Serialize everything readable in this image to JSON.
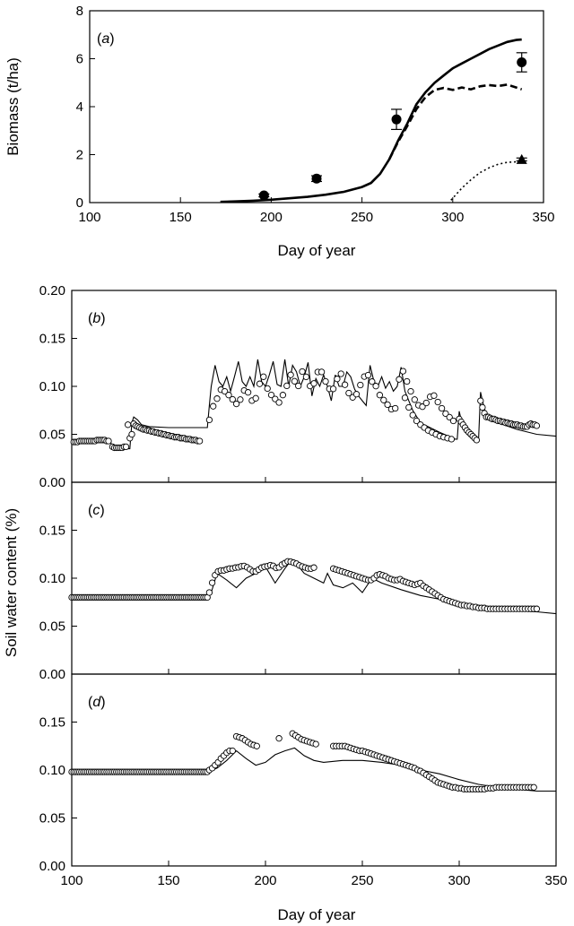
{
  "chart_data": [
    {
      "type": "line",
      "panel_label": "(a)",
      "panel_letter": "a",
      "xlabel": "Day of year",
      "ylabel": "Biomass (t/ha)",
      "xlim": [
        100,
        350
      ],
      "ylim": [
        0,
        8
      ],
      "xticks": [
        100,
        150,
        200,
        250,
        300,
        350
      ],
      "yticks": [
        0,
        2,
        4,
        6,
        8
      ],
      "series": [
        {
          "style": "solid-thick",
          "x": [
            172,
            180,
            190,
            200,
            210,
            220,
            230,
            240,
            250,
            255,
            260,
            265,
            270,
            275,
            280,
            285,
            290,
            295,
            300,
            305,
            310,
            315,
            320,
            325,
            330,
            335,
            338
          ],
          "y": [
            0.03,
            0.05,
            0.08,
            0.12,
            0.18,
            0.24,
            0.33,
            0.45,
            0.65,
            0.82,
            1.2,
            1.8,
            2.6,
            3.3,
            4.1,
            4.6,
            5.0,
            5.3,
            5.6,
            5.8,
            6.0,
            6.2,
            6.4,
            6.55,
            6.7,
            6.78,
            6.8
          ]
        },
        {
          "style": "dashed-thick",
          "x": [
            265,
            270,
            275,
            280,
            285,
            290,
            295,
            300,
            305,
            310,
            315,
            320,
            325,
            330,
            335,
            338
          ],
          "y": [
            1.8,
            2.55,
            3.2,
            3.9,
            4.4,
            4.7,
            4.78,
            4.7,
            4.8,
            4.72,
            4.85,
            4.9,
            4.86,
            4.92,
            4.8,
            4.72
          ]
        },
        {
          "style": "dotted",
          "x": [
            299,
            305,
            310,
            315,
            320,
            325,
            330,
            335,
            338
          ],
          "y": [
            0.1,
            0.6,
            0.95,
            1.25,
            1.45,
            1.6,
            1.68,
            1.7,
            1.72
          ]
        }
      ],
      "observations": [
        {
          "marker": "circle",
          "x": 196,
          "y": 0.3,
          "err": 0.06
        },
        {
          "marker": "circle",
          "x": 225,
          "y": 1.0,
          "err": 0.12
        },
        {
          "marker": "circle",
          "x": 269,
          "y": 3.47,
          "err": 0.42
        },
        {
          "marker": "circle",
          "x": 338,
          "y": 5.85,
          "err": 0.4
        },
        {
          "marker": "triangle",
          "x": 338,
          "y": 1.8,
          "err": 0.06
        }
      ]
    },
    {
      "type": "line",
      "panel_label": "(b)",
      "panel_letter": "b",
      "xlim": [
        100,
        350
      ],
      "ylim": [
        0,
        0.2
      ],
      "xticks": [
        100,
        150,
        200,
        250,
        300,
        350
      ],
      "yticks": [
        "0.00",
        "0.05",
        "0.10",
        "0.15",
        "0.20"
      ],
      "simulated": {
        "x": [
          100,
          110,
          120,
          121,
          122,
          128,
          130,
          131,
          132,
          134,
          136,
          140,
          150,
          160,
          168,
          170,
          171,
          172,
          174,
          176,
          178,
          180,
          182,
          184,
          186,
          188,
          190,
          192,
          194,
          196,
          198,
          200,
          202,
          204,
          206,
          208,
          210,
          212,
          214,
          216,
          218,
          220,
          222,
          224,
          226,
          228,
          230,
          232,
          234,
          236,
          238,
          240,
          242,
          244,
          246,
          248,
          250,
          252,
          254,
          256,
          258,
          260,
          262,
          264,
          266,
          268,
          270,
          272,
          274,
          276,
          280,
          290,
          298,
          299,
          300,
          301,
          302,
          304,
          306,
          308,
          309,
          310,
          311,
          312,
          314,
          320,
          330,
          340,
          350
        ],
        "y": [
          0.043,
          0.043,
          0.043,
          0.035,
          0.035,
          0.035,
          0.035,
          0.062,
          0.068,
          0.065,
          0.06,
          0.058,
          0.057,
          0.057,
          0.057,
          0.057,
          0.08,
          0.1,
          0.122,
          0.105,
          0.1,
          0.11,
          0.095,
          0.11,
          0.126,
          0.105,
          0.1,
          0.11,
          0.1,
          0.128,
          0.105,
          0.1,
          0.112,
          0.126,
          0.102,
          0.1,
          0.128,
          0.1,
          0.122,
          0.115,
          0.1,
          0.11,
          0.125,
          0.09,
          0.108,
          0.1,
          0.112,
          0.1,
          0.085,
          0.112,
          0.1,
          0.1,
          0.115,
          0.11,
          0.097,
          0.09,
          0.085,
          0.08,
          0.122,
          0.105,
          0.1,
          0.11,
          0.098,
          0.105,
          0.095,
          0.1,
          0.12,
          0.095,
          0.085,
          0.075,
          0.062,
          0.052,
          0.045,
          0.045,
          0.074,
          0.065,
          0.06,
          0.055,
          0.05,
          0.047,
          0.045,
          0.045,
          0.094,
          0.085,
          0.07,
          0.062,
          0.055,
          0.05,
          0.048
        ]
      },
      "observed_segments": [
        {
          "x0": 101,
          "x1": 119,
          "step": 1,
          "y": [
            0.042,
            0.042,
            0.042,
            0.043,
            0.043,
            0.043,
            0.043,
            0.043,
            0.043,
            0.043,
            0.043,
            0.043,
            0.044,
            0.044,
            0.044,
            0.044,
            0.044,
            0.043,
            0.043
          ]
        },
        {
          "x0": 121,
          "x1": 128,
          "step": 1,
          "y": [
            0.037,
            0.036,
            0.036,
            0.036,
            0.036,
            0.036,
            0.037,
            0.037
          ]
        },
        {
          "x0": 129,
          "x1": 166,
          "step": 1,
          "y": [
            0.06,
            0.046,
            0.05,
            0.061,
            0.059,
            0.058,
            0.057,
            0.056,
            0.055,
            0.055,
            0.054,
            0.054,
            0.053,
            0.053,
            0.052,
            0.052,
            0.051,
            0.051,
            0.05,
            0.05,
            0.049,
            0.049,
            0.048,
            0.048,
            0.047,
            0.047,
            0.047,
            0.046,
            0.046,
            0.046,
            0.045,
            0.045,
            0.045,
            0.044,
            0.044,
            0.044,
            0.043,
            0.043
          ]
        },
        {
          "x0": 171,
          "x1": 297,
          "step": 2,
          "y": [
            0.065,
            0.08,
            0.088,
            0.098,
            0.094,
            0.09,
            0.085,
            0.08,
            0.09,
            0.1,
            0.088,
            0.082,
            0.095,
            0.115,
            0.1,
            0.092,
            0.088,
            0.082,
            0.09,
            0.1,
            0.112,
            0.105,
            0.1,
            0.118,
            0.108,
            0.098,
            0.105,
            0.12,
            0.112,
            0.1,
            0.095,
            0.1,
            0.118,
            0.105,
            0.095,
            0.088,
            0.09,
            0.1,
            0.11,
            0.112,
            0.105,
            0.1,
            0.09,
            0.085,
            0.08,
            0.075,
            0.078,
            0.122,
            0.112,
            0.1,
            0.09,
            0.082,
            0.078,
            0.08,
            0.088,
            0.092,
            0.085,
            0.078,
            0.072,
            0.068,
            0.064
          ]
        },
        {
          "x0": 272,
          "x1": 297,
          "step": 2,
          "y": [
            0.088,
            0.078,
            0.07,
            0.064,
            0.06,
            0.057,
            0.054,
            0.052,
            0.05,
            0.048,
            0.047,
            0.046,
            0.045
          ]
        },
        {
          "x0": 300,
          "x1": 309,
          "step": 1,
          "y": [
            0.066,
            0.063,
            0.06,
            0.057,
            0.054,
            0.052,
            0.05,
            0.048,
            0.046,
            0.044
          ]
        },
        {
          "x0": 311,
          "x1": 340,
          "step": 1,
          "y": [
            0.085,
            0.078,
            0.072,
            0.068,
            0.068,
            0.067,
            0.066,
            0.066,
            0.065,
            0.064,
            0.064,
            0.063,
            0.063,
            0.062,
            0.062,
            0.061,
            0.061,
            0.06,
            0.06,
            0.06,
            0.059,
            0.059,
            0.058,
            0.058,
            0.058,
            0.06,
            0.061,
            0.06,
            0.06,
            0.059
          ]
        }
      ]
    },
    {
      "type": "line",
      "panel_label": "(c)",
      "panel_letter": "c",
      "ylabel": "Soil water content (%)",
      "xlim": [
        100,
        350
      ],
      "ylim": [
        0,
        0.2
      ],
      "xticks": [
        100,
        150,
        200,
        250,
        300,
        350
      ],
      "yticks": [
        "0.00",
        "0.05",
        "0.10",
        "0.15"
      ],
      "simulated": {
        "x": [
          100,
          150,
          165,
          170,
          172,
          175,
          180,
          185,
          190,
          195,
          200,
          205,
          210,
          213,
          216,
          220,
          225,
          230,
          232,
          235,
          240,
          245,
          250,
          255,
          260,
          270,
          280,
          290,
          300,
          310,
          320,
          330,
          340,
          350
        ],
        "y": [
          0.08,
          0.08,
          0.08,
          0.08,
          0.085,
          0.105,
          0.098,
          0.09,
          0.1,
          0.105,
          0.112,
          0.095,
          0.11,
          0.118,
          0.115,
          0.105,
          0.1,
          0.095,
          0.105,
          0.093,
          0.09,
          0.095,
          0.085,
          0.1,
          0.095,
          0.088,
          0.082,
          0.078,
          0.072,
          0.069,
          0.067,
          0.066,
          0.065,
          0.063
        ]
      },
      "observed_segments": [
        {
          "x0": 100,
          "x1": 170,
          "step": 1,
          "y": "const:0.08"
        },
        {
          "x0": 171,
          "x1": 226,
          "step": 1.5,
          "y": [
            0.085,
            0.095,
            0.103,
            0.107,
            0.108,
            0.108,
            0.109,
            0.11,
            0.11,
            0.111,
            0.111,
            0.112,
            0.113,
            0.112,
            0.11,
            0.108,
            0.106,
            0.108,
            0.11,
            0.112,
            0.112,
            0.113,
            0.114,
            0.112,
            0.11,
            0.112,
            0.115,
            0.116,
            0.118,
            0.117,
            0.116,
            0.115,
            0.113,
            0.112,
            0.111,
            0.11,
            0.11,
            0.111
          ]
        },
        {
          "x0": 235,
          "x1": 340,
          "step": 1.5,
          "y": [
            0.11,
            0.109,
            0.108,
            0.107,
            0.106,
            0.105,
            0.104,
            0.103,
            0.102,
            0.101,
            0.1,
            0.099,
            0.098,
            0.098,
            0.1,
            0.103,
            0.104,
            0.103,
            0.102,
            0.1,
            0.099,
            0.098,
            0.098,
            0.099,
            0.097,
            0.096,
            0.095,
            0.094,
            0.093,
            0.094,
            0.095,
            0.092,
            0.09,
            0.088,
            0.086,
            0.084,
            0.082,
            0.08,
            0.078,
            0.077,
            0.076,
            0.075,
            0.074,
            0.073,
            0.072,
            0.072,
            0.071,
            0.071,
            0.07,
            0.07,
            0.069,
            0.069,
            0.069,
            0.068,
            0.068,
            0.068,
            0.068,
            0.068,
            0.068,
            0.068,
            0.068,
            0.068,
            0.068,
            0.068,
            0.068,
            0.068,
            0.068,
            0.068,
            0.068,
            0.068,
            0.068
          ]
        }
      ]
    },
    {
      "type": "line",
      "panel_label": "(d)",
      "panel_letter": "d",
      "xlabel": "Day of year",
      "xlim": [
        100,
        350
      ],
      "ylim": [
        0,
        0.2
      ],
      "xticks": [
        100,
        150,
        200,
        250,
        300,
        350
      ],
      "yticks": [
        "0.00",
        "0.05",
        "0.10",
        "0.15"
      ],
      "simulated": {
        "x": [
          100,
          150,
          165,
          170,
          175,
          180,
          185,
          190,
          195,
          200,
          205,
          210,
          215,
          220,
          225,
          230,
          240,
          250,
          260,
          270,
          280,
          290,
          300,
          310,
          320,
          330,
          340,
          350
        ],
        "y": [
          0.098,
          0.098,
          0.098,
          0.098,
          0.102,
          0.11,
          0.12,
          0.112,
          0.105,
          0.108,
          0.116,
          0.12,
          0.123,
          0.115,
          0.11,
          0.108,
          0.11,
          0.11,
          0.108,
          0.105,
          0.1,
          0.096,
          0.09,
          0.085,
          0.082,
          0.08,
          0.078,
          0.078
        ]
      },
      "observed_segments": [
        {
          "x0": 100,
          "x1": 170,
          "step": 1,
          "y": "const:0.098"
        },
        {
          "x0": 171,
          "x1": 183,
          "step": 1.5,
          "y": [
            0.1,
            0.102,
            0.105,
            0.108,
            0.112,
            0.115,
            0.118,
            0.12,
            0.12
          ]
        },
        {
          "x0": 185,
          "x1": 196,
          "step": 1.5,
          "y": [
            0.135,
            0.134,
            0.133,
            0.131,
            0.129,
            0.127,
            0.126,
            0.125
          ]
        },
        {
          "x0": 207,
          "x1": 207,
          "step": 1,
          "y": [
            0.133
          ]
        },
        {
          "x0": 214,
          "x1": 226,
          "step": 1.5,
          "y": [
            0.138,
            0.136,
            0.134,
            0.132,
            0.131,
            0.13,
            0.129,
            0.128,
            0.127
          ]
        },
        {
          "x0": 235,
          "x1": 339,
          "step": 1.5,
          "y": [
            0.125,
            0.125,
            0.125,
            0.125,
            0.125,
            0.124,
            0.123,
            0.122,
            0.121,
            0.12,
            0.12,
            0.119,
            0.118,
            0.117,
            0.116,
            0.115,
            0.114,
            0.113,
            0.112,
            0.111,
            0.11,
            0.109,
            0.108,
            0.107,
            0.106,
            0.105,
            0.104,
            0.103,
            0.102,
            0.1,
            0.099,
            0.097,
            0.095,
            0.093,
            0.091,
            0.089,
            0.087,
            0.086,
            0.085,
            0.084,
            0.083,
            0.082,
            0.082,
            0.081,
            0.081,
            0.08,
            0.08,
            0.08,
            0.08,
            0.08,
            0.08,
            0.08,
            0.08,
            0.081,
            0.081,
            0.081,
            0.082,
            0.082,
            0.082,
            0.082,
            0.082,
            0.082,
            0.082,
            0.082,
            0.082,
            0.082,
            0.082,
            0.082,
            0.082,
            0.082
          ]
        }
      ]
    }
  ]
}
